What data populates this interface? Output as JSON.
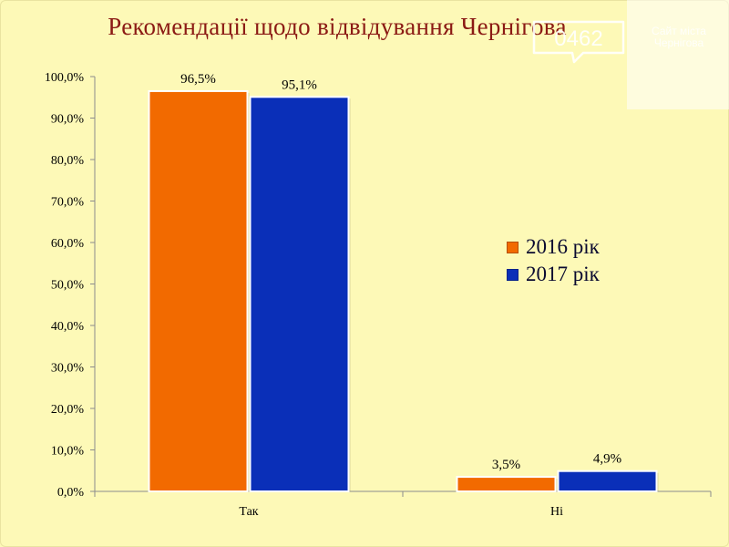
{
  "chart_data": {
    "type": "bar",
    "title": "Рекомендації щодо відвідування Чернігова",
    "categories": [
      "Так",
      "Ні"
    ],
    "series": [
      {
        "name": "2016 рік",
        "values": [
          96.5,
          3.5
        ],
        "labels": [
          "96,5%",
          "3,5%"
        ],
        "color": "#f26a00"
      },
      {
        "name": "2017 рік",
        "values": [
          95.1,
          4.9
        ],
        "labels": [
          "95,1%",
          "4,9%"
        ],
        "color": "#0a2fb8"
      }
    ],
    "ylim": [
      0,
      100
    ],
    "yticks": [
      "0,0%",
      "10,0%",
      "20,0%",
      "30,0%",
      "40,0%",
      "50,0%",
      "60,0%",
      "70,0%",
      "80,0%",
      "90,0%",
      "100,0%"
    ],
    "xlabel": "",
    "ylabel": "",
    "grid": false,
    "legend": "right"
  },
  "watermark": {
    "logo_text": "0462",
    "caption": "Сайт міста Чернігова"
  }
}
